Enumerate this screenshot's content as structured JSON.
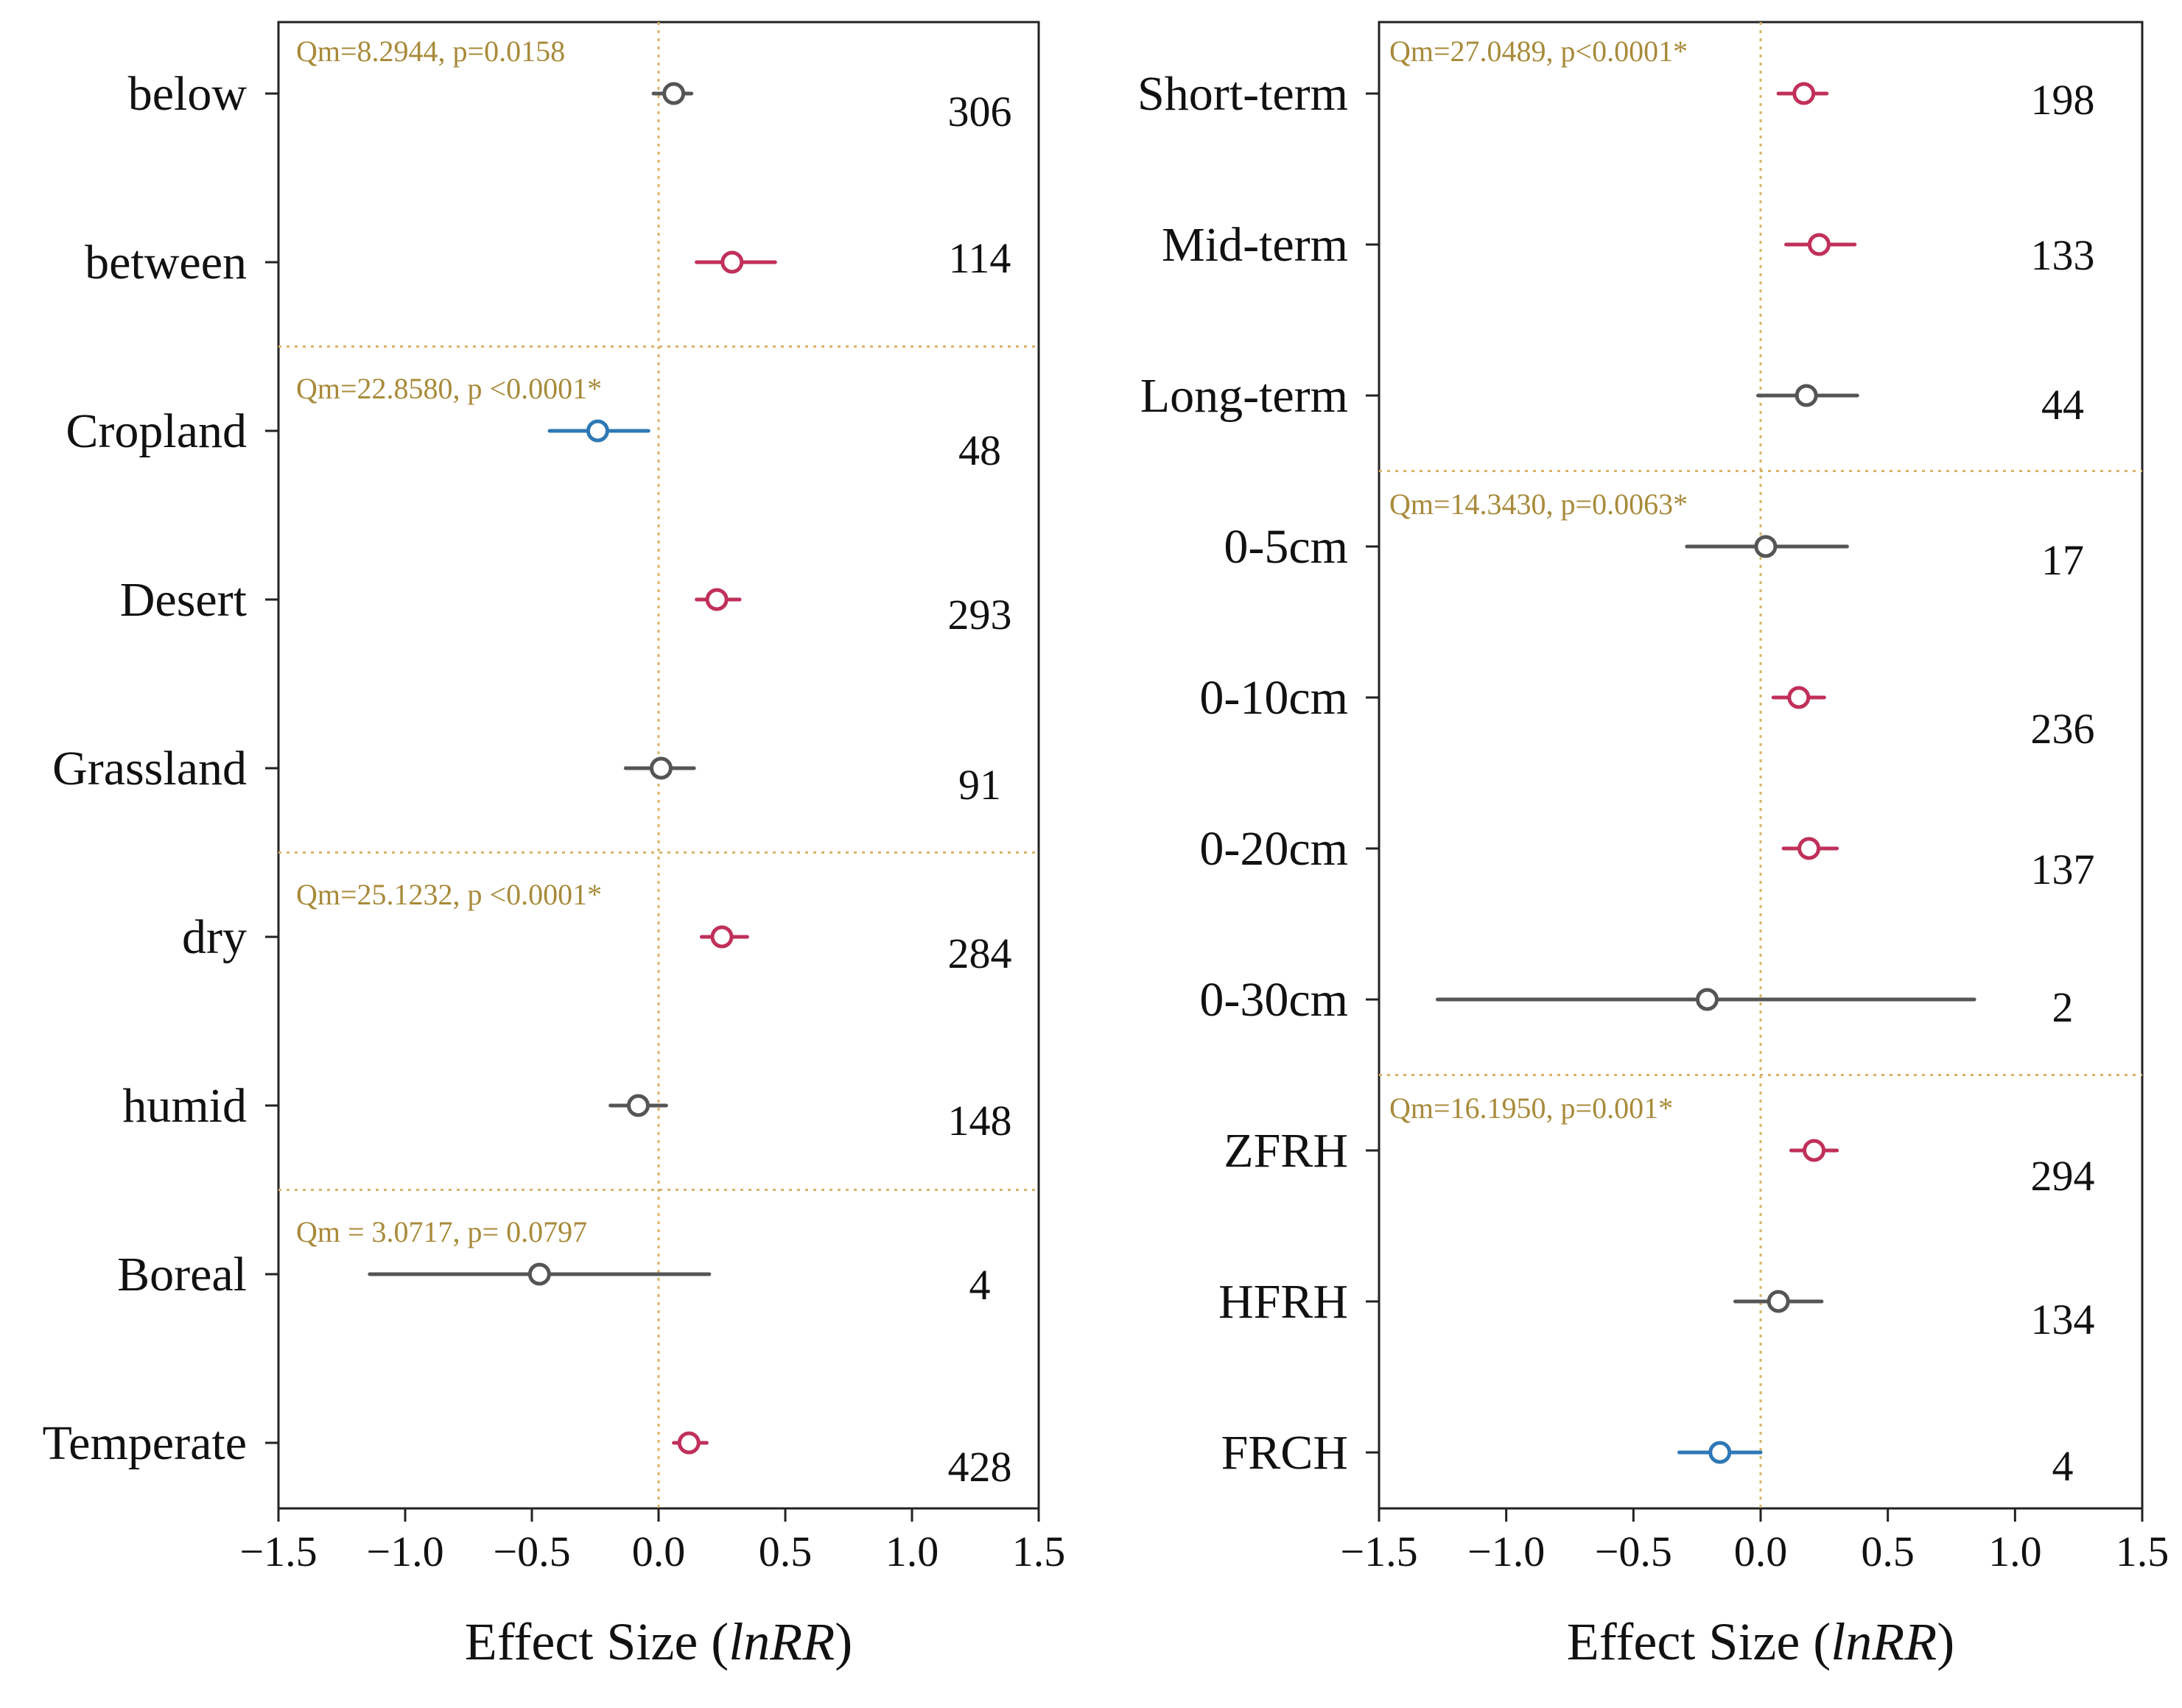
{
  "chart_data": [
    {
      "type": "forest",
      "xlabel": "Effect Size (lnRR)",
      "xlabel_plain": "Effect Size (",
      "xlabel_italic": "lnRR",
      "xlabel_close": ")",
      "xlim": [
        -1.5,
        1.5
      ],
      "xticks": [
        -1.5,
        -1.0,
        -0.5,
        0.0,
        0.5,
        1.0,
        1.5
      ],
      "xtick_labels": [
        "−1.5",
        "−1.0",
        "−0.5",
        "0.0",
        "0.5",
        "1.0",
        "1.5"
      ],
      "reference_line": 0,
      "colors": {
        "positive": "#c0305a",
        "negative": "#2e78b5",
        "ns": "#555555",
        "separator": "#d9b36a",
        "stats": "#a88a3a"
      },
      "groups": [
        {
          "stats": "Qm=8.2944, p=0.0158",
          "rows": [
            {
              "label": "below",
              "mean": 0.06,
              "lower": -0.02,
              "upper": 0.13,
              "n": "306",
              "sig": "ns"
            },
            {
              "label": "between",
              "mean": 0.29,
              "lower": 0.15,
              "upper": 0.46,
              "n": "114",
              "sig": "positive"
            }
          ]
        },
        {
          "stats": "Qm=22.8580, p <0.0001*",
          "rows": [
            {
              "label": "Cropland",
              "mean": -0.24,
              "lower": -0.43,
              "upper": -0.04,
              "n": "48",
              "sig": "negative"
            },
            {
              "label": "Desert",
              "mean": 0.23,
              "lower": 0.15,
              "upper": 0.32,
              "n": "293",
              "sig": "positive"
            },
            {
              "label": "Grassland",
              "mean": 0.01,
              "lower": -0.13,
              "upper": 0.14,
              "n": "91",
              "sig": "ns"
            }
          ]
        },
        {
          "stats": "Qm=25.1232, p <0.0001*",
          "rows": [
            {
              "label": "dry",
              "mean": 0.25,
              "lower": 0.17,
              "upper": 0.35,
              "n": "284",
              "sig": "positive"
            },
            {
              "label": "humid",
              "mean": -0.08,
              "lower": -0.19,
              "upper": 0.03,
              "n": "148",
              "sig": "ns"
            }
          ]
        },
        {
          "stats": "Qm = 3.0717, p= 0.0797",
          "rows": [
            {
              "label": "Boreal",
              "mean": -0.47,
              "lower": -1.14,
              "upper": 0.2,
              "n": "4",
              "sig": "ns"
            },
            {
              "label": "Temperate",
              "mean": 0.12,
              "lower": 0.06,
              "upper": 0.19,
              "n": "428",
              "sig": "positive"
            }
          ]
        }
      ]
    },
    {
      "type": "forest",
      "xlabel": "Effect Size (lnRR)",
      "xlabel_plain": "Effect Size (",
      "xlabel_italic": "lnRR",
      "xlabel_close": ")",
      "xlim": [
        -1.5,
        1.5
      ],
      "xticks": [
        -1.5,
        -1.0,
        -0.5,
        0.0,
        0.5,
        1.0,
        1.5
      ],
      "xtick_labels": [
        "−1.5",
        "−1.0",
        "−0.5",
        "0.0",
        "0.5",
        "1.0",
        "1.5"
      ],
      "reference_line": 0,
      "colors": {
        "positive": "#c0305a",
        "negative": "#2e78b5",
        "ns": "#555555",
        "separator": "#d9b36a",
        "stats": "#a88a3a"
      },
      "groups": [
        {
          "stats": "Qm=27.0489, p<0.0001*",
          "rows": [
            {
              "label": "Short-term",
              "mean": 0.17,
              "lower": 0.07,
              "upper": 0.26,
              "n": "198",
              "sig": "positive"
            },
            {
              "label": "Mid-term",
              "mean": 0.23,
              "lower": 0.1,
              "upper": 0.37,
              "n": "133",
              "sig": "positive"
            },
            {
              "label": "Long-term",
              "mean": 0.18,
              "lower": -0.01,
              "upper": 0.38,
              "n": "44",
              "sig": "ns"
            }
          ]
        },
        {
          "stats": "Qm=14.3430, p=0.0063*",
          "rows": [
            {
              "label": "0-5cm",
              "mean": 0.02,
              "lower": -0.29,
              "upper": 0.34,
              "n": "17",
              "sig": "ns"
            },
            {
              "label": "0-10cm",
              "mean": 0.15,
              "lower": 0.05,
              "upper": 0.25,
              "n": "236",
              "sig": "positive"
            },
            {
              "label": "0-20cm",
              "mean": 0.19,
              "lower": 0.09,
              "upper": 0.3,
              "n": "137",
              "sig": "positive"
            },
            {
              "label": "0-30cm",
              "mean": -0.21,
              "lower": -1.27,
              "upper": 0.84,
              "n": "2",
              "sig": "ns"
            }
          ]
        },
        {
          "stats": "Qm=16.1950, p=0.001*",
          "rows": [
            {
              "label": "ZFRH",
              "mean": 0.21,
              "lower": 0.12,
              "upper": 0.3,
              "n": "294",
              "sig": "positive"
            },
            {
              "label": "HFRH",
              "mean": 0.07,
              "lower": -0.1,
              "upper": 0.24,
              "n": "134",
              "sig": "ns"
            },
            {
              "label": "FRCH",
              "mean": -0.16,
              "lower": -0.32,
              "upper": 0.0,
              "n": "4",
              "sig": "negative"
            }
          ]
        }
      ]
    }
  ]
}
